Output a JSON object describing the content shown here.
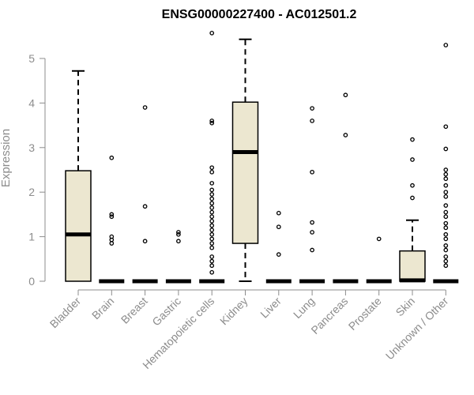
{
  "chart_data": {
    "type": "box",
    "title": "ENSG00000227400 - AC012501.2",
    "xlabel": "",
    "ylabel": "Expression",
    "ylim": [
      0,
      5.6
    ],
    "yticks": [
      "0",
      "1",
      "2",
      "3",
      "4",
      "5"
    ],
    "grid": false,
    "box_fill": "#ece7d0",
    "categories": [
      "Bladder",
      "Brain",
      "Breast",
      "Gastric",
      "Hematopoietic cells",
      "Kidney",
      "Liver",
      "Lung",
      "Pancreas",
      "Prostate",
      "Skin",
      "Unknown / Other"
    ],
    "boxes": [
      {
        "q1": 0,
        "median": 1.05,
        "q3": 2.48,
        "whisker_low": 0,
        "whisker_high": 4.72,
        "outliers": []
      },
      {
        "q1": 0,
        "median": 0,
        "q3": 0,
        "whisker_low": 0,
        "whisker_high": 0,
        "outliers": [
          0.85,
          0.93,
          1.0,
          1.45,
          1.5,
          2.77
        ]
      },
      {
        "q1": 0,
        "median": 0,
        "q3": 0,
        "whisker_low": 0,
        "whisker_high": 0,
        "outliers": [
          0.9,
          1.68,
          3.9
        ]
      },
      {
        "q1": 0,
        "median": 0,
        "q3": 0,
        "whisker_low": 0,
        "whisker_high": 0,
        "outliers": [
          0.9,
          1.05,
          1.1
        ]
      },
      {
        "q1": 0,
        "median": 0,
        "q3": 0,
        "whisker_low": 0,
        "whisker_high": 0,
        "outliers": [
          0.2,
          0.35,
          0.45,
          0.55,
          0.75,
          0.85,
          0.95,
          1.05,
          1.15,
          1.25,
          1.35,
          1.45,
          1.55,
          1.65,
          1.75,
          1.85,
          1.95,
          2.05,
          2.2,
          2.45,
          2.55,
          3.55,
          3.6,
          5.57
        ]
      },
      {
        "q1": 0.85,
        "median": 2.9,
        "q3": 4.02,
        "whisker_low": 0,
        "whisker_high": 5.43,
        "outliers": []
      },
      {
        "q1": 0,
        "median": 0,
        "q3": 0,
        "whisker_low": 0,
        "whisker_high": 0,
        "outliers": [
          0.6,
          1.22,
          1.53
        ]
      },
      {
        "q1": 0,
        "median": 0,
        "q3": 0,
        "whisker_low": 0,
        "whisker_high": 0,
        "outliers": [
          0.7,
          1.1,
          1.32,
          2.45,
          3.6,
          3.88
        ]
      },
      {
        "q1": 0,
        "median": 0,
        "q3": 0,
        "whisker_low": 0,
        "whisker_high": 0,
        "outliers": [
          3.28,
          4.18
        ]
      },
      {
        "q1": 0,
        "median": 0,
        "q3": 0,
        "whisker_low": 0,
        "whisker_high": 0,
        "outliers": [
          0.95
        ]
      },
      {
        "q1": 0,
        "median": 0.02,
        "q3": 0.68,
        "whisker_low": 0,
        "whisker_high": 1.37,
        "outliers": [
          1.87,
          2.15,
          2.73,
          3.18
        ]
      },
      {
        "q1": 0,
        "median": 0,
        "q3": 0,
        "whisker_low": 0,
        "whisker_high": 0,
        "outliers": [
          0.35,
          0.45,
          0.55,
          0.7,
          0.8,
          0.95,
          1.05,
          1.2,
          1.3,
          1.45,
          1.55,
          1.7,
          1.9,
          2.0,
          2.15,
          2.3,
          2.4,
          2.5,
          2.97,
          3.47,
          5.3
        ]
      }
    ]
  }
}
